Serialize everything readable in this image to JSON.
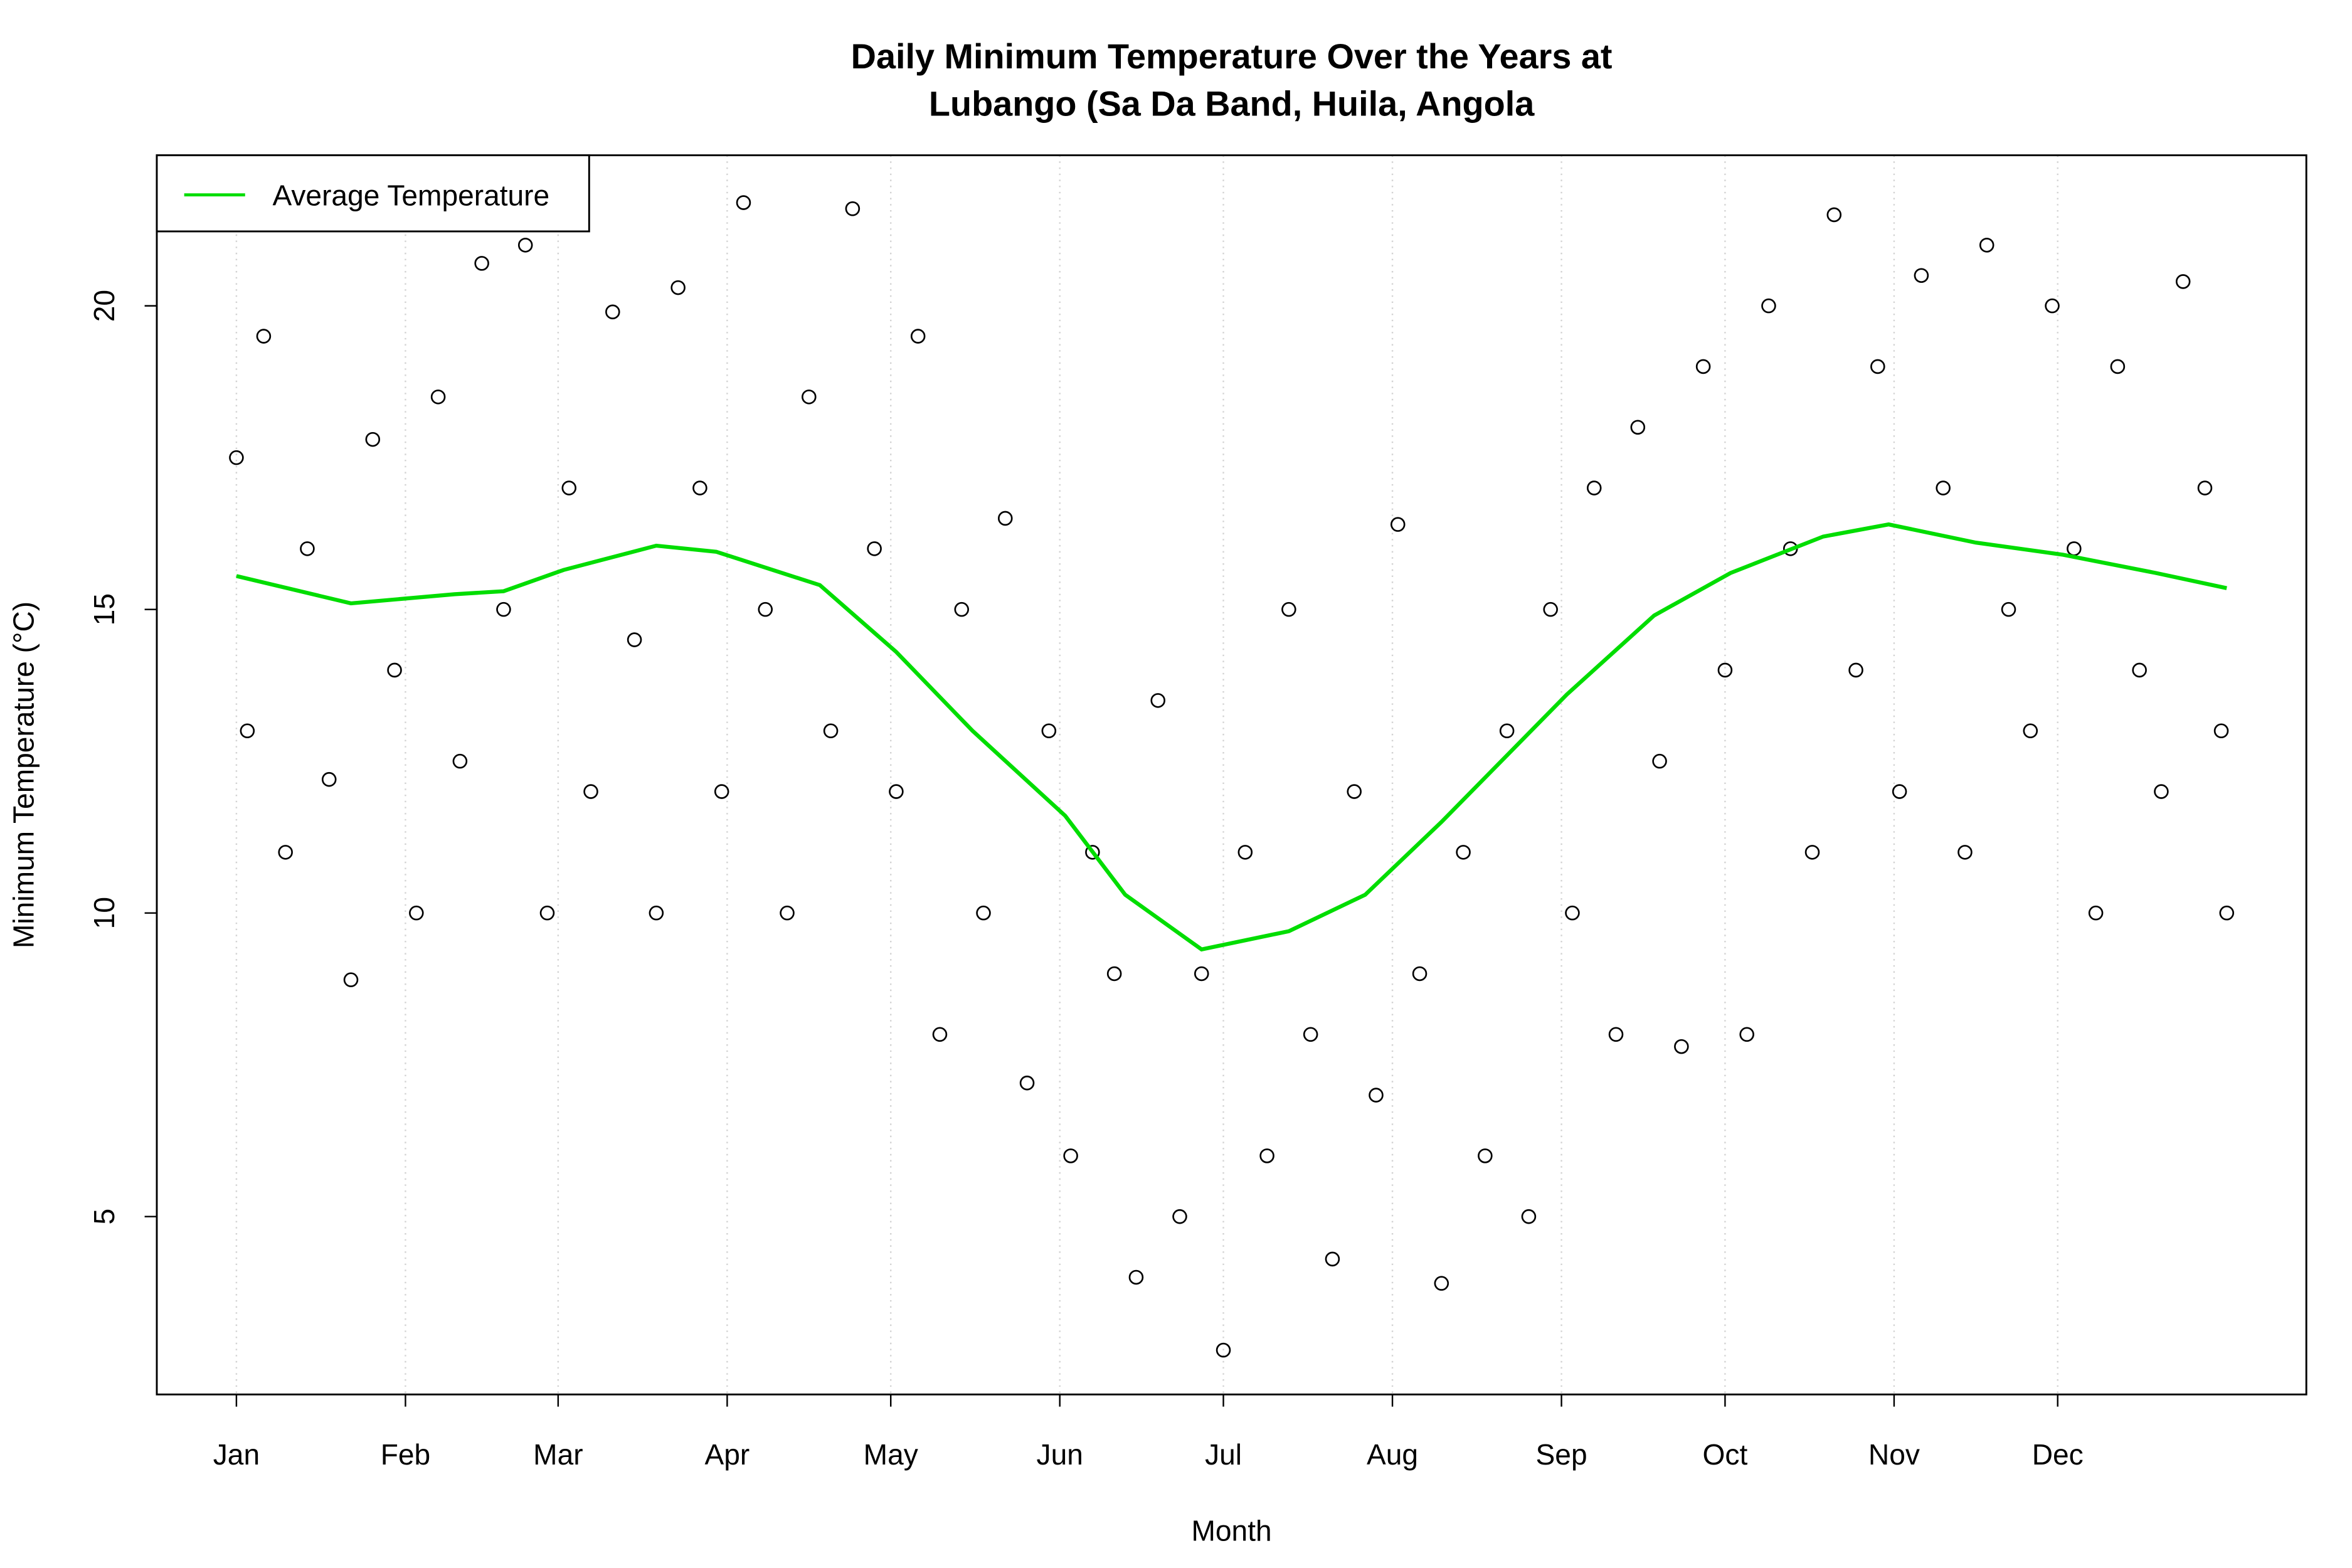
{
  "chart_data": {
    "type": "scatter",
    "title": [
      "Daily Minimum Temperature Over the Years at",
      "Lubango (Sa Da Band, Huila, Angola"
    ],
    "x_label": "Month",
    "y_label": "Minimum Temperature (°C)",
    "xlim": [
      -13.6,
      380.6
    ],
    "ylim": [
      2.07,
      22.48
    ],
    "xticks": [
      {
        "value": 1,
        "label": "Jan"
      },
      {
        "value": 32,
        "label": "Feb"
      },
      {
        "value": 60,
        "label": "Mar"
      },
      {
        "value": 91,
        "label": "Apr"
      },
      {
        "value": 121,
        "label": "May"
      },
      {
        "value": 152,
        "label": "Jun"
      },
      {
        "value": 182,
        "label": "Jul"
      },
      {
        "value": 213,
        "label": "Aug"
      },
      {
        "value": 244,
        "label": "Sep"
      },
      {
        "value": 274,
        "label": "Oct"
      },
      {
        "value": 305,
        "label": "Nov"
      },
      {
        "value": 335,
        "label": "Dec"
      }
    ],
    "yticks": [
      5,
      10,
      15,
      20
    ],
    "grid": "x",
    "legend": "top-left",
    "series": [
      {
        "type": "scatter",
        "color": "#000000",
        "x": [
          1,
          3,
          6,
          10,
          14,
          18,
          22,
          26,
          30,
          34,
          38,
          42,
          46,
          50,
          54,
          58,
          62,
          66,
          70,
          74,
          78,
          82,
          86,
          90,
          94,
          98,
          102,
          106,
          110,
          114,
          118,
          122,
          126,
          130,
          134,
          138,
          142,
          146,
          150,
          154,
          158,
          162,
          166,
          170,
          174,
          178,
          182,
          186,
          190,
          194,
          198,
          202,
          206,
          210,
          214,
          218,
          222,
          226,
          230,
          234,
          238,
          242,
          246,
          250,
          254,
          258,
          262,
          266,
          270,
          274,
          278,
          282,
          286,
          290,
          294,
          298,
          302,
          306,
          310,
          314,
          318,
          322,
          326,
          330,
          334,
          338,
          342,
          346,
          350,
          354,
          358,
          362,
          365,
          366
        ],
        "values": [
          17.5,
          13,
          19.5,
          11,
          16,
          12.2,
          8.9,
          17.8,
          14,
          10,
          18.5,
          12.5,
          20.7,
          15,
          21,
          10,
          17,
          12,
          19.9,
          14.5,
          10,
          20.3,
          17,
          12,
          21.7,
          15,
          10,
          18.5,
          13,
          21.6,
          16,
          12,
          19.5,
          8,
          15,
          10,
          16.5,
          7.2,
          13,
          6,
          11,
          9,
          4,
          13.5,
          5,
          9,
          2.8,
          11,
          6,
          15,
          8,
          4.3,
          12,
          7,
          16.4,
          9,
          3.9,
          11,
          6,
          13,
          5,
          15,
          10,
          17,
          8,
          18,
          12.5,
          7.8,
          19,
          14,
          8,
          20,
          16,
          11,
          21.5,
          14,
          19,
          12,
          20.5,
          17,
          11,
          21,
          15,
          13,
          20,
          16,
          10,
          19,
          14,
          12,
          20.4,
          17,
          13,
          10
        ]
      },
      {
        "type": "line",
        "name": "Average Temperature",
        "color": "#00dd00",
        "x": [
          1,
          22,
          41,
          50,
          61,
          78,
          89,
          108,
          122,
          136,
          153,
          164,
          178,
          194,
          208,
          222,
          245,
          261,
          275,
          292,
          304,
          320,
          336,
          353,
          366
        ],
        "values": [
          15.55,
          15.1,
          15.25,
          15.3,
          15.65,
          16.05,
          15.95,
          15.4,
          14.3,
          13.0,
          11.6,
          10.3,
          9.4,
          9.7,
          10.3,
          11.5,
          13.6,
          14.9,
          15.6,
          16.2,
          16.4,
          16.1,
          15.9,
          15.6,
          15.35
        ]
      }
    ]
  }
}
